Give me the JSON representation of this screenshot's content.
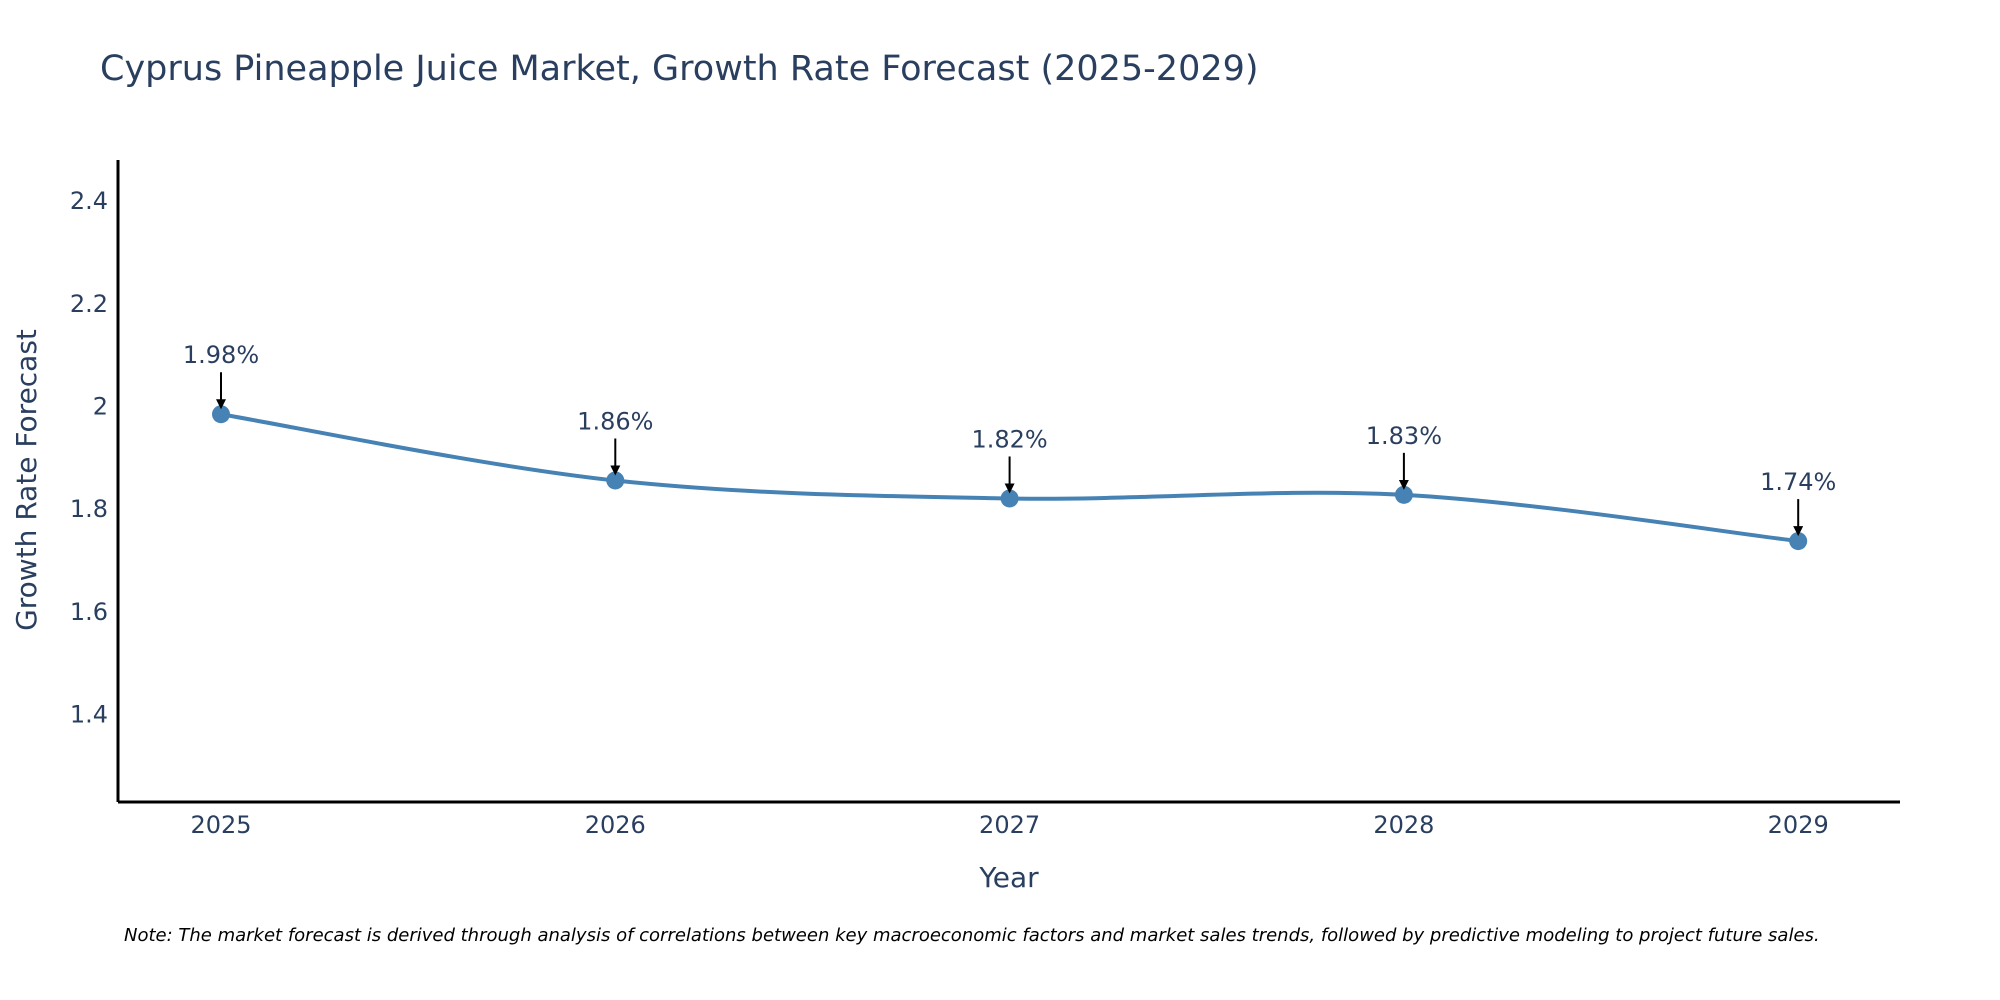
{
  "chart_data": {
    "type": "line",
    "title": "Cyprus Pineapple Juice Market, Growth Rate Forecast (2025-2029)",
    "xlabel": "Year",
    "ylabel": "Growth Rate Forecast",
    "categories": [
      "2025",
      "2026",
      "2027",
      "2028",
      "2029"
    ],
    "series": [
      {
        "name": "Growth Rate Forecast",
        "values": [
          1.985,
          1.856,
          1.821,
          1.828,
          1.738
        ],
        "labels": [
          "1.98%",
          "1.86%",
          "1.82%",
          "1.83%",
          "1.74%"
        ]
      }
    ],
    "ylim": [
      1.23,
      2.48
    ],
    "yticks": [
      1.4,
      1.6,
      1.8,
      2,
      2.2,
      2.4
    ],
    "ytick_labels": [
      "1.4",
      "1.6",
      "1.8",
      "2",
      "2.2",
      "2.4"
    ],
    "grid": false,
    "line_shape": "spline",
    "colors": {
      "line": "#4682b4",
      "marker": "#4682b4",
      "arrow": "#000000",
      "axis": "#000000",
      "text": "#2a3f5f"
    }
  },
  "note": "Note: The market forecast is derived through analysis of correlations between key macroeconomic factors and market sales trends, followed by predictive modeling to project future sales."
}
